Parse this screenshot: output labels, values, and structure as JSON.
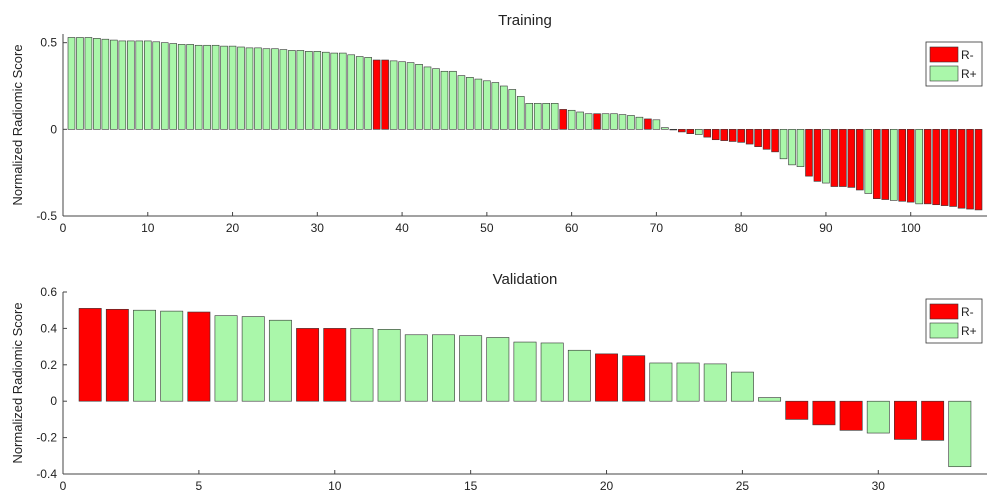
{
  "colors": {
    "r_minus": "#ff0000",
    "r_plus": "#aaf7aa",
    "edge": "#333333"
  },
  "chart_data": [
    {
      "type": "bar",
      "title": "Training",
      "ylabel": "Normalized Radiomic Score",
      "xlabel": "",
      "xlim": [
        0,
        109
      ],
      "ylim": [
        -0.5,
        0.55
      ],
      "xticks": [
        0,
        10,
        20,
        30,
        40,
        50,
        60,
        70,
        80,
        90,
        100
      ],
      "yticks": [
        -0.5,
        0,
        0.5
      ],
      "ytick_labels": [
        "-0.5",
        "0",
        "0.5"
      ],
      "legend": {
        "position": "top-right",
        "entries": [
          {
            "label": "R-",
            "class": "R-"
          },
          {
            "label": "R+",
            "class": "R+"
          }
        ]
      },
      "grid": false,
      "x": [
        1,
        2,
        3,
        4,
        5,
        6,
        7,
        8,
        9,
        10,
        11,
        12,
        13,
        14,
        15,
        16,
        17,
        18,
        19,
        20,
        21,
        22,
        23,
        24,
        25,
        26,
        27,
        28,
        29,
        30,
        31,
        32,
        33,
        34,
        35,
        36,
        37,
        38,
        39,
        40,
        41,
        42,
        43,
        44,
        45,
        46,
        47,
        48,
        49,
        50,
        51,
        52,
        53,
        54,
        55,
        56,
        57,
        58,
        59,
        60,
        61,
        62,
        63,
        64,
        65,
        66,
        67,
        68,
        69,
        70,
        71,
        72,
        73,
        74,
        75,
        76,
        77,
        78,
        79,
        80,
        81,
        82,
        83,
        84,
        85,
        86,
        87,
        88,
        89,
        90,
        91,
        92,
        93,
        94,
        95,
        96,
        97,
        98,
        99,
        100,
        101,
        102,
        103,
        104,
        105,
        106,
        107,
        108
      ],
      "values": [
        0.53,
        0.53,
        0.53,
        0.525,
        0.52,
        0.515,
        0.51,
        0.51,
        0.51,
        0.51,
        0.505,
        0.5,
        0.495,
        0.49,
        0.49,
        0.485,
        0.485,
        0.485,
        0.48,
        0.48,
        0.475,
        0.47,
        0.47,
        0.465,
        0.465,
        0.46,
        0.455,
        0.455,
        0.45,
        0.45,
        0.445,
        0.44,
        0.44,
        0.43,
        0.42,
        0.415,
        0.4,
        0.4,
        0.395,
        0.39,
        0.385,
        0.375,
        0.36,
        0.35,
        0.335,
        0.335,
        0.31,
        0.3,
        0.29,
        0.28,
        0.27,
        0.25,
        0.23,
        0.19,
        0.15,
        0.15,
        0.15,
        0.15,
        0.115,
        0.11,
        0.1,
        0.09,
        0.09,
        0.09,
        0.09,
        0.085,
        0.08,
        0.07,
        0.06,
        0.055,
        0.01,
        0.0,
        -0.015,
        -0.025,
        -0.03,
        -0.045,
        -0.06,
        -0.065,
        -0.07,
        -0.075,
        -0.085,
        -0.1,
        -0.115,
        -0.13,
        -0.17,
        -0.205,
        -0.215,
        -0.27,
        -0.3,
        -0.31,
        -0.33,
        -0.33,
        -0.335,
        -0.35,
        -0.37,
        -0.4,
        -0.405,
        -0.41,
        -0.415,
        -0.42,
        -0.43,
        -0.43,
        -0.435,
        -0.44,
        -0.445,
        -0.455,
        -0.46,
        -0.465
      ],
      "classes": [
        "R+",
        "R+",
        "R+",
        "R+",
        "R+",
        "R+",
        "R+",
        "R+",
        "R+",
        "R+",
        "R+",
        "R+",
        "R+",
        "R+",
        "R+",
        "R+",
        "R+",
        "R+",
        "R+",
        "R+",
        "R+",
        "R+",
        "R+",
        "R+",
        "R+",
        "R+",
        "R+",
        "R+",
        "R+",
        "R+",
        "R+",
        "R+",
        "R+",
        "R+",
        "R+",
        "R+",
        "R-",
        "R-",
        "R+",
        "R+",
        "R+",
        "R+",
        "R+",
        "R+",
        "R+",
        "R+",
        "R+",
        "R+",
        "R+",
        "R+",
        "R+",
        "R+",
        "R+",
        "R+",
        "R+",
        "R+",
        "R+",
        "R+",
        "R-",
        "R+",
        "R+",
        "R+",
        "R-",
        "R+",
        "R+",
        "R+",
        "R+",
        "R+",
        "R-",
        "R+",
        "R+",
        "R+",
        "R-",
        "R-",
        "R+",
        "R-",
        "R-",
        "R-",
        "R-",
        "R-",
        "R-",
        "R-",
        "R-",
        "R-",
        "R+",
        "R+",
        "R+",
        "R-",
        "R-",
        "R+",
        "R-",
        "R-",
        "R-",
        "R-",
        "R+",
        "R-",
        "R-",
        "R+",
        "R-",
        "R-",
        "R+",
        "R-",
        "R-",
        "R-",
        "R-",
        "R-",
        "R-",
        "R-"
      ]
    },
    {
      "type": "bar",
      "title": "Validation",
      "ylabel": "Normalized Radiomic Score",
      "xlabel": "",
      "xlim": [
        0,
        34
      ],
      "ylim": [
        -0.4,
        0.6
      ],
      "xticks": [
        0,
        5,
        10,
        15,
        20,
        25,
        30
      ],
      "yticks": [
        -0.4,
        -0.2,
        0,
        0.2,
        0.4,
        0.6
      ],
      "ytick_labels": [
        "-0.4",
        "-0.2",
        "0",
        "0.2",
        "0.4",
        "0.6"
      ],
      "legend": {
        "position": "top-right",
        "entries": [
          {
            "label": "R-",
            "class": "R-"
          },
          {
            "label": "R+",
            "class": "R+"
          }
        ]
      },
      "grid": false,
      "x": [
        1,
        2,
        3,
        4,
        5,
        6,
        7,
        8,
        9,
        10,
        11,
        12,
        13,
        14,
        15,
        16,
        17,
        18,
        19,
        20,
        21,
        22,
        23,
        24,
        25,
        26,
        27,
        28,
        29,
        30,
        31,
        32,
        33
      ],
      "values": [
        0.51,
        0.505,
        0.5,
        0.495,
        0.49,
        0.47,
        0.465,
        0.445,
        0.4,
        0.4,
        0.4,
        0.395,
        0.365,
        0.365,
        0.36,
        0.35,
        0.325,
        0.32,
        0.28,
        0.26,
        0.25,
        0.21,
        0.21,
        0.205,
        0.16,
        0.02,
        -0.1,
        -0.13,
        -0.16,
        -0.175,
        -0.21,
        -0.215,
        -0.36
      ],
      "classes": [
        "R-",
        "R-",
        "R+",
        "R+",
        "R-",
        "R+",
        "R+",
        "R+",
        "R-",
        "R-",
        "R+",
        "R+",
        "R+",
        "R+",
        "R+",
        "R+",
        "R+",
        "R+",
        "R+",
        "R-",
        "R-",
        "R+",
        "R+",
        "R+",
        "R+",
        "R+",
        "R-",
        "R-",
        "R-",
        "R+",
        "R-",
        "R-",
        "R+"
      ]
    }
  ]
}
